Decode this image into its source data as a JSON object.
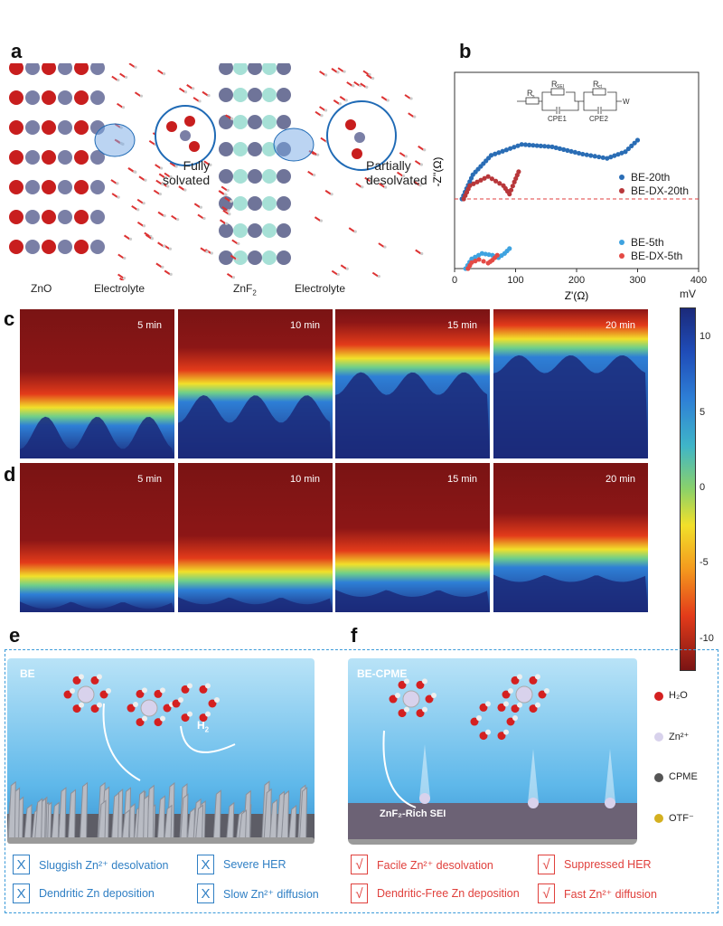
{
  "panels": {
    "a": "a",
    "b": "b",
    "c": "c",
    "d": "d",
    "e": "e",
    "f": "f"
  },
  "panel_a": {
    "left_material": "ZnO",
    "left_electrolyte": "Electrolyte",
    "left_state": [
      "Fully",
      "solvated"
    ],
    "right_material": "ZnF",
    "right_material_sub": "2",
    "right_electrolyte": "Electrolyte",
    "right_state": [
      "Partially",
      "desolvated"
    ]
  },
  "chart_data": {
    "type": "scatter",
    "xlabel": "Z'(Ω)",
    "ylabel": "-Z''(Ω)",
    "xlim": [
      0,
      400
    ],
    "xticks": [
      "0",
      "100",
      "200",
      "300",
      "400"
    ],
    "circuit": {
      "elements": [
        "R",
        "s",
        "R",
        "SEI",
        "R",
        "ct",
        "CPE1",
        "CPE2",
        "W"
      ]
    },
    "series": [
      {
        "name": "BE-20th",
        "color": "#2a6db5",
        "group": "upper",
        "points": [
          [
            12,
            0
          ],
          [
            30,
            40
          ],
          [
            60,
            72
          ],
          [
            110,
            90
          ],
          [
            160,
            86
          ],
          [
            210,
            74
          ],
          [
            250,
            67
          ],
          [
            280,
            78
          ],
          [
            300,
            97
          ]
        ]
      },
      {
        "name": "BE-DX-20th",
        "color": "#b8373a",
        "group": "upper",
        "points": [
          [
            15,
            0
          ],
          [
            25,
            22
          ],
          [
            55,
            37
          ],
          [
            80,
            22
          ],
          [
            90,
            8
          ],
          [
            98,
            28
          ],
          [
            105,
            45
          ]
        ]
      },
      {
        "name": "BE-5th",
        "color": "#3fa3e0",
        "group": "lower",
        "points": [
          [
            18,
            0
          ],
          [
            28,
            16
          ],
          [
            45,
            25
          ],
          [
            62,
            22
          ],
          [
            72,
            18
          ],
          [
            82,
            25
          ],
          [
            90,
            33
          ]
        ]
      },
      {
        "name": "BE-DX-5th",
        "color": "#e44a45",
        "group": "lower",
        "points": [
          [
            22,
            0
          ],
          [
            28,
            10
          ],
          [
            40,
            15
          ],
          [
            55,
            9
          ],
          [
            62,
            14
          ],
          [
            70,
            22
          ]
        ]
      }
    ]
  },
  "panel_c": {
    "times": [
      "5 min",
      "10 min",
      "15 min",
      "20 min"
    ],
    "front_level": [
      0.22,
      0.38,
      0.55,
      0.68
    ]
  },
  "panel_d": {
    "times": [
      "5 min",
      "10 min",
      "15 min",
      "20 min"
    ],
    "front_level": [
      0.12,
      0.15,
      0.2,
      0.3
    ]
  },
  "colorbar": {
    "unit": "mV",
    "ticks": [
      "10",
      "5",
      "0",
      "-5",
      "-10"
    ],
    "range": [
      -12,
      12
    ]
  },
  "panel_e": {
    "tag": "BE",
    "h2": "H",
    "h2_sub": "2",
    "items": [
      {
        "mark": "X",
        "text": "Sluggish Zn²⁺ desolvation"
      },
      {
        "mark": "X",
        "text": "Severe HER"
      },
      {
        "mark": "X",
        "text": "Dendritic Zn deposition"
      },
      {
        "mark": "X",
        "text": "Slow Zn²⁺ diffusion"
      }
    ]
  },
  "panel_f": {
    "tag": "BE-CPME",
    "sei": "ZnF₂-Rich SEI",
    "items": [
      {
        "mark": "√",
        "text": "Facile Zn²⁺ desolvation"
      },
      {
        "mark": "√",
        "text": "Suppressed HER"
      },
      {
        "mark": "√",
        "text": "Dendritic-Free Zn deposition"
      },
      {
        "mark": "√",
        "text": "Fast Zn²⁺ diffusion"
      }
    ]
  },
  "legend_right": [
    "H₂O",
    "Zn²⁺",
    "CPME",
    "OTF⁻"
  ]
}
